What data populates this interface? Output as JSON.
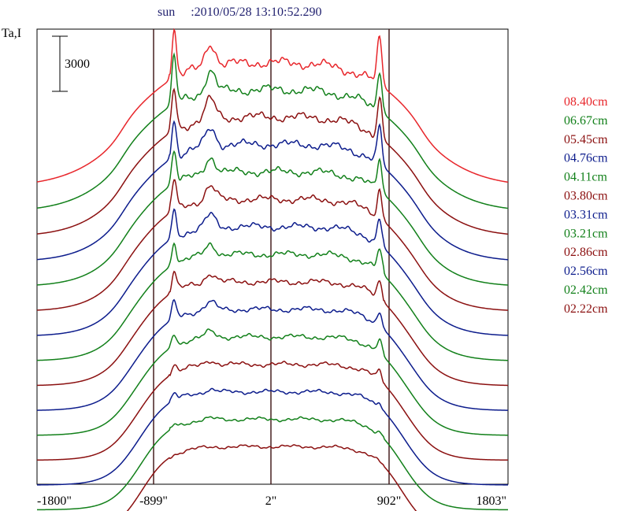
{
  "chart_data": {
    "type": "line",
    "title": "sun     :2010/05/28 13:10:52.290",
    "ylabel": "Ta,I",
    "scale_bar_label": "3000",
    "x_ticks": [
      "-1800\"",
      "-899\"",
      "2\"",
      "902\"",
      "1803\""
    ],
    "x_tick_values": [
      -1800,
      -899,
      2,
      902,
      1803
    ],
    "vertical_markers": [
      -899,
      2,
      902
    ],
    "xlim": [
      -1800,
      1803
    ],
    "colors": {
      "red": "#e8262b",
      "green": "#12801a",
      "darkred": "#8b1010",
      "blue": "#0c1c8c"
    },
    "series": [
      {
        "name": "08.40cm",
        "color": "#e8262b"
      },
      {
        "name": "06.67cm",
        "color": "#12801a"
      },
      {
        "name": "05.45cm",
        "color": "#8b1010"
      },
      {
        "name": "04.76cm",
        "color": "#0c1c8c"
      },
      {
        "name": "04.11cm",
        "color": "#12801a"
      },
      {
        "name": "03.80cm",
        "color": "#8b1010"
      },
      {
        "name": "03.31cm",
        "color": "#0c1c8c"
      },
      {
        "name": "03.21cm",
        "color": "#12801a"
      },
      {
        "name": "02.86cm",
        "color": "#8b1010"
      },
      {
        "name": "02.56cm",
        "color": "#0c1c8c"
      },
      {
        "name": "02.42cm",
        "color": "#12801a"
      },
      {
        "name": "02.22cm",
        "color": "#8b1010"
      },
      {
        "name": "",
        "color": "#0c1c8c"
      },
      {
        "name": "",
        "color": "#12801a"
      },
      {
        "name": "",
        "color": "#8b1010"
      }
    ]
  }
}
